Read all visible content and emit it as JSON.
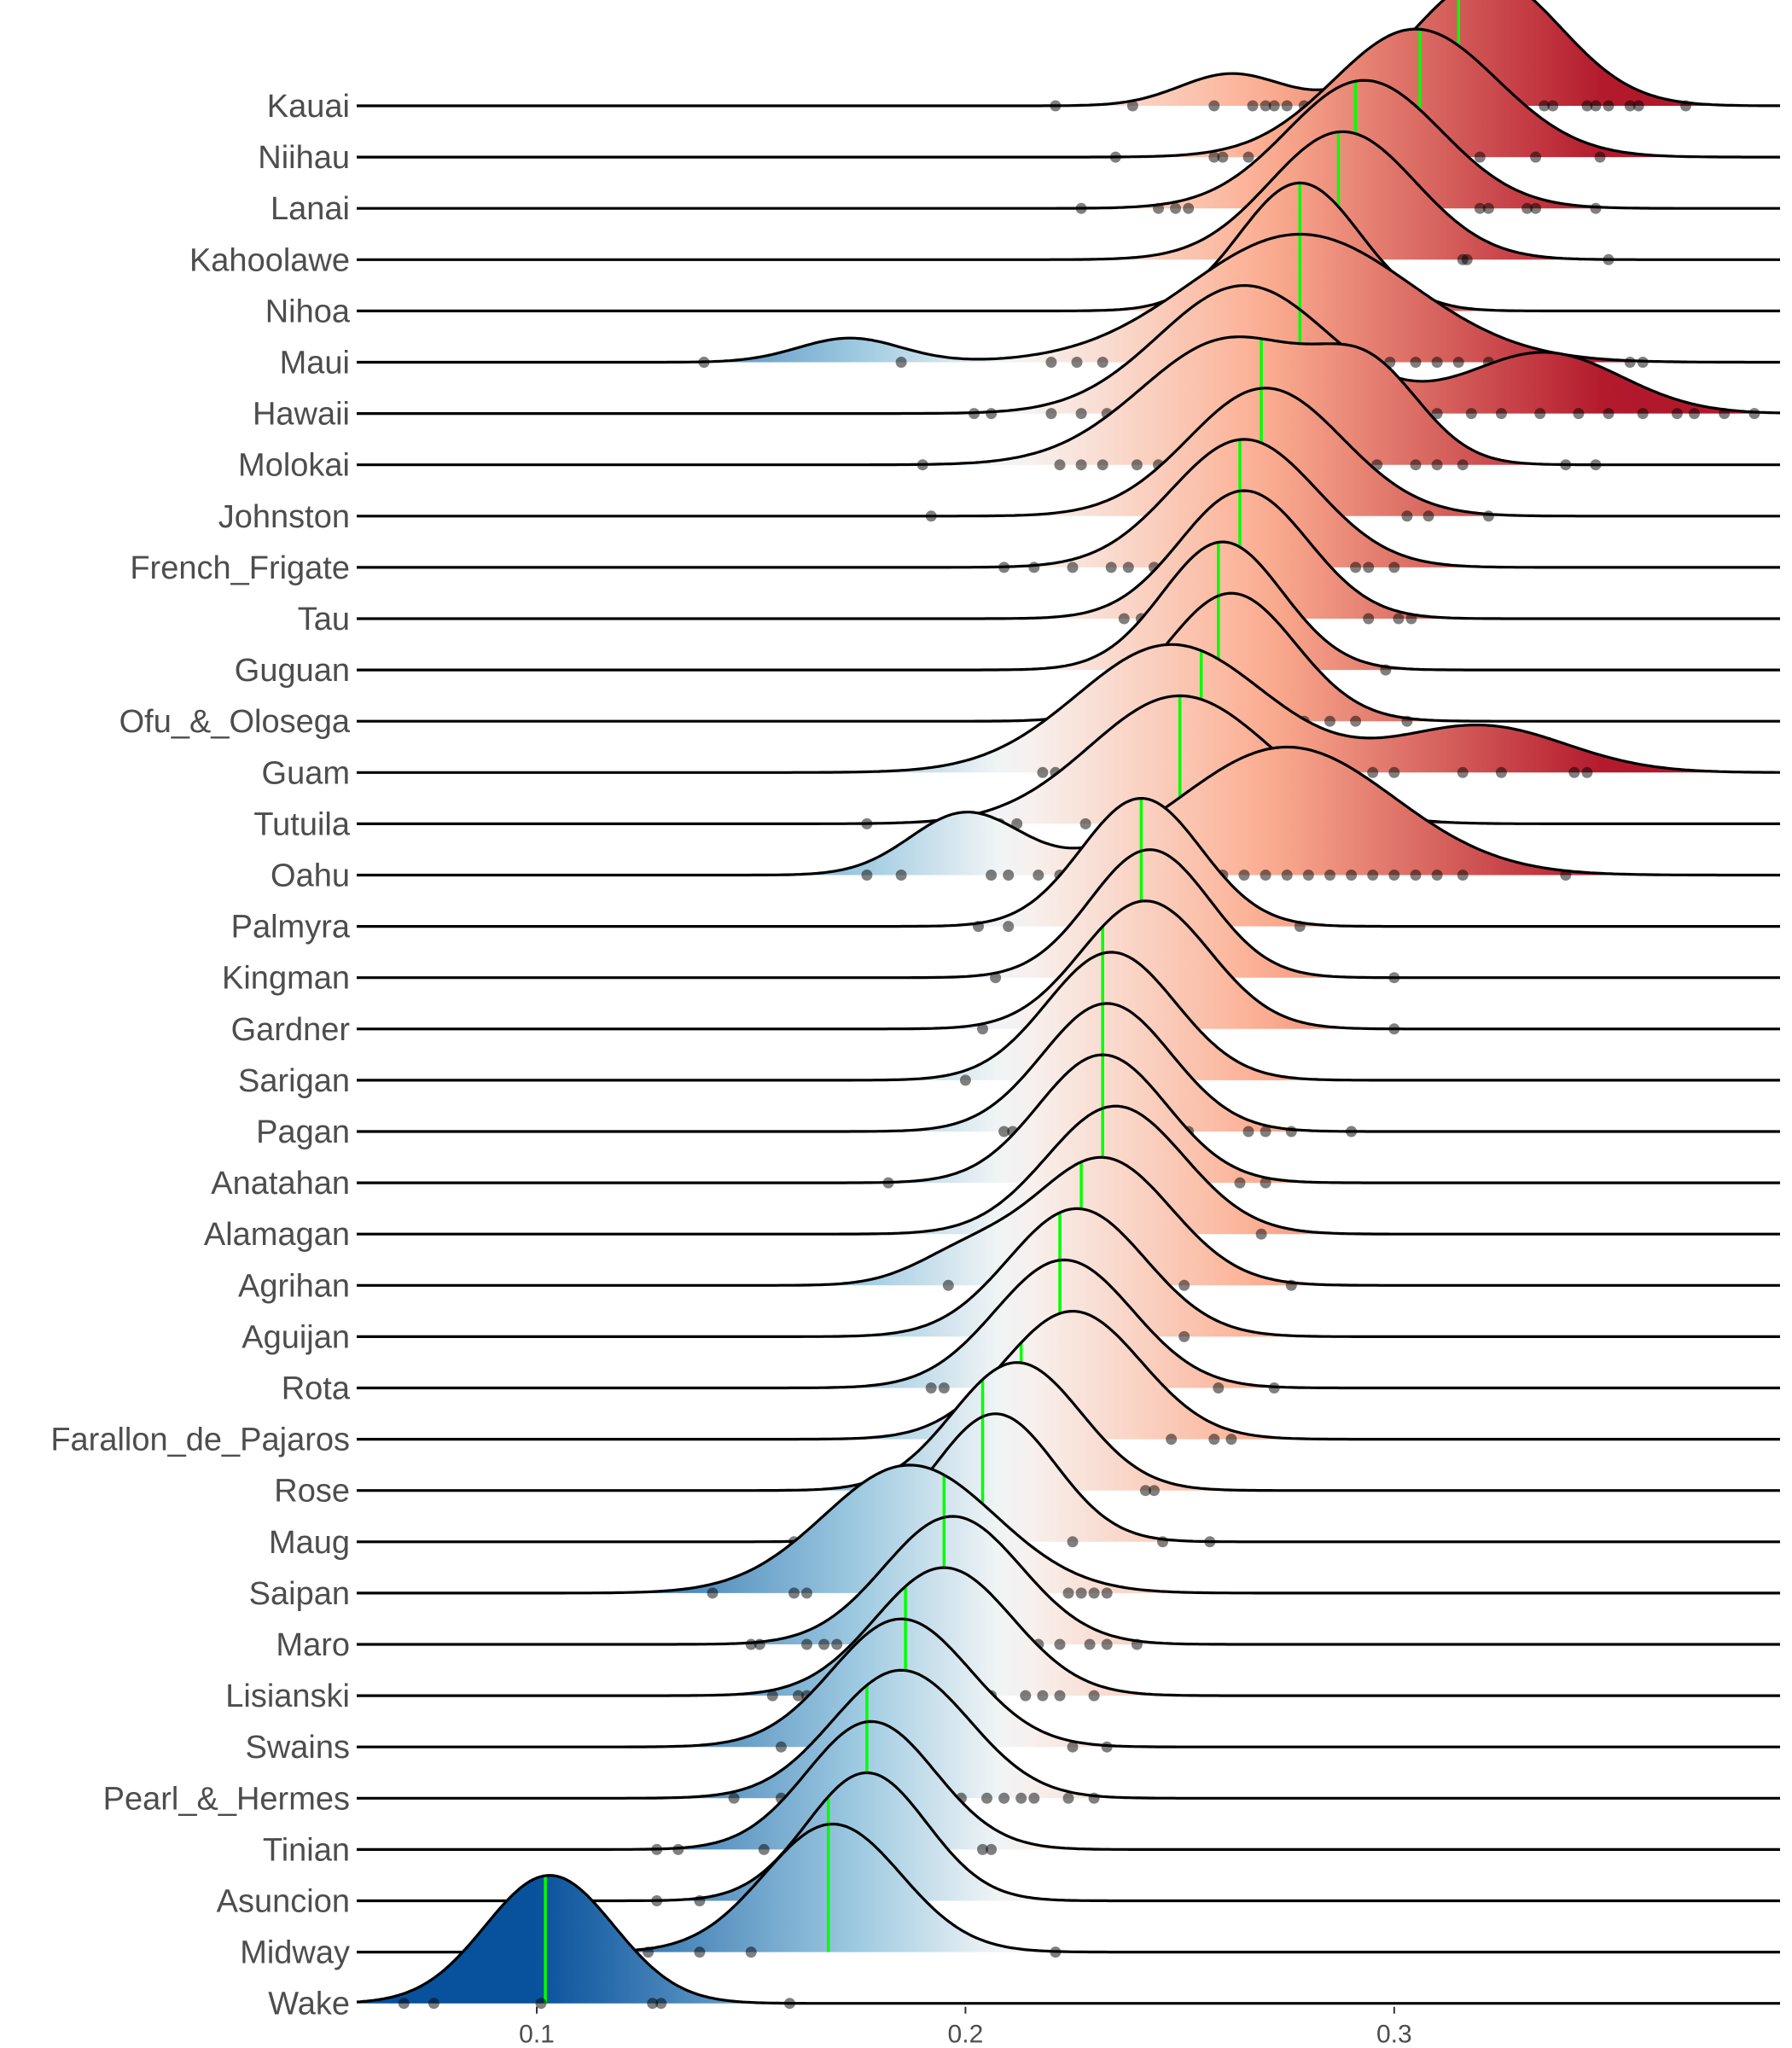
{
  "chart_data": {
    "type": "ridgeline",
    "title": "",
    "xlabel": "",
    "ylabel": "",
    "xlim": [
      0.058,
      0.39
    ],
    "x_ticks": [
      0.1,
      0.2,
      0.3
    ],
    "x_tick_labels": [
      "0.1",
      "0.2",
      "0.3"
    ],
    "grid": false,
    "legend": "none",
    "colors": {
      "low": "#08519c",
      "mid_low": "#9ecae1",
      "mid": "#f7f7f7",
      "mid_high": "#fcae91",
      "high": "#b2182b",
      "outline": "#000000",
      "median_line": "#00ff00",
      "points": "#000000"
    },
    "color_scale_domain": [
      0.1,
      0.21,
      0.35
    ],
    "categories": [
      "Kauai",
      "Niihau",
      "Lanai",
      "Kahoolawe",
      "Nihoa",
      "Maui",
      "Hawaii",
      "Molokai",
      "Johnston",
      "French_Frigate",
      "Tau",
      "Guguan",
      "Ofu_&_Olosega",
      "Guam",
      "Tutuila",
      "Oahu",
      "Palmyra",
      "Kingman",
      "Gardner",
      "Sarigan",
      "Pagan",
      "Anatahan",
      "Alamagan",
      "Agrihan",
      "Aguijan",
      "Rota",
      "Farallon_de_Pajaros",
      "Rose",
      "Maug",
      "Saipan",
      "Maro",
      "Lisianski",
      "Swains",
      "Pearl_&_Hermes",
      "Tinian",
      "Asuncion",
      "Midway",
      "Wake"
    ],
    "series": [
      {
        "name": "Kauai",
        "median": 0.315,
        "components": [
          {
            "mu": 0.322,
            "sd": 0.017,
            "w": 0.85
          },
          {
            "mu": 0.262,
            "sd": 0.012,
            "w": 0.15
          }
        ],
        "points": [
          0.221,
          0.239,
          0.258,
          0.267,
          0.27,
          0.272,
          0.275,
          0.279,
          0.32,
          0.335,
          0.337,
          0.345,
          0.347,
          0.35,
          0.355,
          0.357,
          0.368
        ]
      },
      {
        "name": "Niihau",
        "median": 0.306,
        "components": [
          {
            "mu": 0.305,
            "sd": 0.019,
            "w": 1.0
          }
        ],
        "points": [
          0.235,
          0.258,
          0.26,
          0.266,
          0.313,
          0.32,
          0.333,
          0.348
        ]
      },
      {
        "name": "Lanai",
        "median": 0.291,
        "components": [
          {
            "mu": 0.293,
            "sd": 0.018,
            "w": 1.0
          }
        ],
        "points": [
          0.227,
          0.245,
          0.249,
          0.252,
          0.32,
          0.322,
          0.331,
          0.333,
          0.347
        ]
      },
      {
        "name": "Kahoolawe",
        "median": 0.287,
        "components": [
          {
            "mu": 0.288,
            "sd": 0.017,
            "w": 1.0
          }
        ],
        "points": [
          0.316,
          0.317,
          0.35
        ]
      },
      {
        "name": "Nihoa",
        "median": 0.278,
        "components": [
          {
            "mu": 0.278,
            "sd": 0.014,
            "w": 1.0
          }
        ],
        "points": [
          0.254,
          0.306
        ]
      },
      {
        "name": "Maui",
        "median": 0.278,
        "components": [
          {
            "mu": 0.278,
            "sd": 0.026,
            "w": 0.92
          },
          {
            "mu": 0.173,
            "sd": 0.012,
            "w": 0.08
          }
        ],
        "points": [
          0.139,
          0.185,
          0.22,
          0.226,
          0.232,
          0.242,
          0.247,
          0.25,
          0.254,
          0.26,
          0.265,
          0.27,
          0.275,
          0.283,
          0.292,
          0.299,
          0.305,
          0.31,
          0.315,
          0.322,
          0.328,
          0.336,
          0.355,
          0.358
        ]
      },
      {
        "name": "Hawaii",
        "median": 0.278,
        "components": [
          {
            "mu": 0.265,
            "sd": 0.02,
            "w": 0.7
          },
          {
            "mu": 0.335,
            "sd": 0.018,
            "w": 0.3
          }
        ],
        "points": [
          0.202,
          0.206,
          0.22,
          0.227,
          0.233,
          0.238,
          0.244,
          0.25,
          0.255,
          0.262,
          0.285,
          0.292,
          0.298,
          0.304,
          0.31,
          0.318,
          0.325,
          0.334,
          0.343,
          0.35,
          0.358,
          0.366,
          0.37,
          0.377,
          0.384
        ]
      },
      {
        "name": "Molokai",
        "median": 0.269,
        "components": [
          {
            "mu": 0.262,
            "sd": 0.021,
            "w": 0.75
          },
          {
            "mu": 0.295,
            "sd": 0.012,
            "w": 0.25
          }
        ],
        "points": [
          0.19,
          0.222,
          0.227,
          0.232,
          0.24,
          0.245,
          0.254,
          0.28,
          0.288,
          0.296,
          0.305,
          0.31,
          0.316,
          0.34,
          0.347
        ]
      },
      {
        "name": "Johnston",
        "median": 0.269,
        "components": [
          {
            "mu": 0.27,
            "sd": 0.018,
            "w": 1.0
          }
        ],
        "points": [
          0.192,
          0.249,
          0.253,
          0.303,
          0.308,
          0.322
        ]
      },
      {
        "name": "French_Frigate",
        "median": 0.264,
        "components": [
          {
            "mu": 0.265,
            "sd": 0.017,
            "w": 1.0
          }
        ],
        "points": [
          0.209,
          0.216,
          0.225,
          0.234,
          0.238,
          0.244,
          0.291,
          0.294,
          0.3
        ]
      },
      {
        "name": "Tau",
        "median": 0.264,
        "components": [
          {
            "mu": 0.265,
            "sd": 0.015,
            "w": 1.0
          }
        ],
        "points": [
          0.237,
          0.241,
          0.294,
          0.301,
          0.304
        ]
      },
      {
        "name": "Guguan",
        "median": 0.259,
        "components": [
          {
            "mu": 0.26,
            "sd": 0.014,
            "w": 1.0
          }
        ],
        "points": [
          0.238,
          0.298
        ]
      },
      {
        "name": "Ofu_&_Olosega",
        "median": 0.259,
        "components": [
          {
            "mu": 0.262,
            "sd": 0.015,
            "w": 1.0
          }
        ],
        "points": [
          0.27,
          0.279,
          0.285,
          0.291,
          0.303
        ]
      },
      {
        "name": "Guam",
        "median": 0.255,
        "components": [
          {
            "mu": 0.248,
            "sd": 0.022,
            "w": 0.75
          },
          {
            "mu": 0.32,
            "sd": 0.02,
            "w": 0.25
          }
        ],
        "points": [
          0.218,
          0.221,
          0.23,
          0.282,
          0.295,
          0.3,
          0.316,
          0.325,
          0.342,
          0.345
        ]
      },
      {
        "name": "Tutuila",
        "median": 0.25,
        "components": [
          {
            "mu": 0.25,
            "sd": 0.021,
            "w": 1.0
          }
        ],
        "points": [
          0.177,
          0.202,
          0.208,
          0.212,
          0.228,
          0.269,
          0.284,
          0.303
        ]
      },
      {
        "name": "Oahu",
        "median": 0.241,
        "components": [
          {
            "mu": 0.275,
            "sd": 0.025,
            "w": 0.8
          },
          {
            "mu": 0.2,
            "sd": 0.013,
            "w": 0.2
          }
        ],
        "points": [
          0.177,
          0.185,
          0.206,
          0.21,
          0.217,
          0.222,
          0.226,
          0.26,
          0.265,
          0.27,
          0.275,
          0.28,
          0.285,
          0.29,
          0.295,
          0.3,
          0.305,
          0.31,
          0.316,
          0.34
        ]
      },
      {
        "name": "Palmyra",
        "median": 0.241,
        "components": [
          {
            "mu": 0.241,
            "sd": 0.014,
            "w": 1.0
          }
        ],
        "points": [
          0.203,
          0.21,
          0.278
        ]
      },
      {
        "name": "Kingman",
        "median": 0.241,
        "components": [
          {
            "mu": 0.243,
            "sd": 0.014,
            "w": 1.0
          }
        ],
        "points": [
          0.207,
          0.3
        ]
      },
      {
        "name": "Gardner",
        "median": 0.232,
        "components": [
          {
            "mu": 0.242,
            "sd": 0.015,
            "w": 1.0
          }
        ],
        "points": [
          0.204,
          0.3
        ]
      },
      {
        "name": "Sarigan",
        "median": 0.232,
        "components": [
          {
            "mu": 0.234,
            "sd": 0.015,
            "w": 1.0
          }
        ],
        "points": [
          0.2
        ]
      },
      {
        "name": "Pagan",
        "median": 0.232,
        "components": [
          {
            "mu": 0.233,
            "sd": 0.015,
            "w": 1.0
          }
        ],
        "points": [
          0.209,
          0.211,
          0.252,
          0.266,
          0.27,
          0.276,
          0.29
        ]
      },
      {
        "name": "Anatahan",
        "median": 0.232,
        "components": [
          {
            "mu": 0.232,
            "sd": 0.015,
            "w": 1.0
          }
        ],
        "points": [
          0.182,
          0.264,
          0.27
        ]
      },
      {
        "name": "Alamagan",
        "median": 0.232,
        "components": [
          {
            "mu": 0.235,
            "sd": 0.016,
            "w": 1.0
          }
        ],
        "points": [
          0.269
        ]
      },
      {
        "name": "Agrihan",
        "median": 0.227,
        "components": [
          {
            "mu": 0.232,
            "sd": 0.016,
            "w": 0.85
          },
          {
            "mu": 0.2,
            "sd": 0.012,
            "w": 0.15
          }
        ],
        "points": [
          0.196,
          0.251,
          0.276
        ]
      },
      {
        "name": "Aguijan",
        "median": 0.222,
        "components": [
          {
            "mu": 0.226,
            "sd": 0.016,
            "w": 1.0
          }
        ],
        "points": [
          0.251
        ]
      },
      {
        "name": "Rota",
        "median": 0.222,
        "components": [
          {
            "mu": 0.223,
            "sd": 0.016,
            "w": 1.0
          }
        ],
        "points": [
          0.192,
          0.195,
          0.259,
          0.272
        ]
      },
      {
        "name": "Farallon_de_Pajaros",
        "median": 0.213,
        "components": [
          {
            "mu": 0.225,
            "sd": 0.016,
            "w": 1.0
          }
        ],
        "points": [
          0.248,
          0.258,
          0.262
        ]
      },
      {
        "name": "Rose",
        "median": 0.204,
        "components": [
          {
            "mu": 0.212,
            "sd": 0.015,
            "w": 1.0
          }
        ],
        "points": [
          0.242,
          0.244
        ]
      },
      {
        "name": "Maug",
        "median": 0.204,
        "components": [
          {
            "mu": 0.207,
            "sd": 0.014,
            "w": 1.0
          }
        ],
        "points": [
          0.16,
          0.225,
          0.246,
          0.257
        ]
      },
      {
        "name": "Saipan",
        "median": 0.195,
        "components": [
          {
            "mu": 0.187,
            "sd": 0.02,
            "w": 1.0
          }
        ],
        "points": [
          0.141,
          0.16,
          0.163,
          0.224,
          0.227,
          0.23,
          0.233
        ]
      },
      {
        "name": "Maro",
        "median": 0.195,
        "components": [
          {
            "mu": 0.197,
            "sd": 0.016,
            "w": 1.0
          }
        ],
        "points": [
          0.15,
          0.152,
          0.163,
          0.167,
          0.17,
          0.217,
          0.222,
          0.229,
          0.233,
          0.24
        ]
      },
      {
        "name": "Lisianski",
        "median": 0.186,
        "components": [
          {
            "mu": 0.195,
            "sd": 0.016,
            "w": 1.0
          }
        ],
        "points": [
          0.155,
          0.161,
          0.163,
          0.165,
          0.167,
          0.206,
          0.214,
          0.218,
          0.222,
          0.23
        ]
      },
      {
        "name": "Swains",
        "median": 0.186,
        "components": [
          {
            "mu": 0.185,
            "sd": 0.016,
            "w": 1.0
          }
        ],
        "points": [
          0.157,
          0.225,
          0.233
        ]
      },
      {
        "name": "Pearl_&_Hermes",
        "median": 0.177,
        "components": [
          {
            "mu": 0.185,
            "sd": 0.016,
            "w": 1.0
          }
        ],
        "points": [
          0.146,
          0.157,
          0.163,
          0.199,
          0.205,
          0.209,
          0.213,
          0.216,
          0.224,
          0.23
        ]
      },
      {
        "name": "Tinian",
        "median": 0.177,
        "components": [
          {
            "mu": 0.178,
            "sd": 0.015,
            "w": 1.0
          }
        ],
        "points": [
          0.128,
          0.133,
          0.153,
          0.194,
          0.204,
          0.206
        ]
      },
      {
        "name": "Asuncion",
        "median": 0.168,
        "components": [
          {
            "mu": 0.177,
            "sd": 0.014,
            "w": 1.0
          }
        ],
        "points": [
          0.128,
          0.138
        ]
      },
      {
        "name": "Midway",
        "median": 0.168,
        "components": [
          {
            "mu": 0.169,
            "sd": 0.016,
            "w": 1.0
          }
        ],
        "points": [
          0.126,
          0.138,
          0.15,
          0.221
        ]
      },
      {
        "name": "Wake",
        "median": 0.102,
        "components": [
          {
            "mu": 0.103,
            "sd": 0.015,
            "w": 1.0
          }
        ],
        "points": [
          0.069,
          0.076,
          0.101,
          0.127,
          0.129,
          0.159
        ]
      }
    ]
  }
}
